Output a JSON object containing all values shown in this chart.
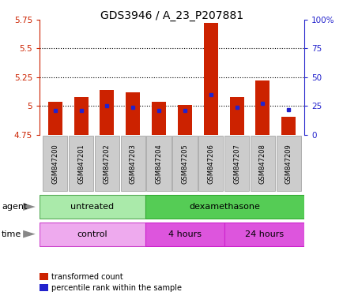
{
  "title": "GDS3946 / A_23_P207881",
  "samples": [
    "GSM847200",
    "GSM847201",
    "GSM847202",
    "GSM847203",
    "GSM847204",
    "GSM847205",
    "GSM847206",
    "GSM847207",
    "GSM847208",
    "GSM847209"
  ],
  "transformed_count": [
    5.04,
    5.08,
    5.14,
    5.12,
    5.04,
    5.01,
    5.72,
    5.08,
    5.22,
    4.91
  ],
  "percentile_rank": [
    21,
    21,
    25,
    24,
    21,
    21,
    35,
    24,
    27,
    22
  ],
  "base_value": 4.75,
  "ylim_left": [
    4.75,
    5.75
  ],
  "ylim_right": [
    0,
    100
  ],
  "yticks_left": [
    4.75,
    5.0,
    5.25,
    5.5,
    5.75
  ],
  "ytick_labels_left": [
    "4.75",
    "5",
    "5.25",
    "5.5",
    "5.75"
  ],
  "yticks_right": [
    0,
    25,
    50,
    75,
    100
  ],
  "ytick_labels_right": [
    "0",
    "25",
    "50",
    "75",
    "100%"
  ],
  "hlines": [
    5.0,
    5.25,
    5.5
  ],
  "bar_color": "#cc2200",
  "dot_color": "#2222cc",
  "agent_untreated_label": "untreated",
  "agent_dexa_label": "dexamethasone",
  "time_control_label": "control",
  "time_4h_label": "4 hours",
  "time_24h_label": "24 hours",
  "agent_row_label": "agent",
  "time_row_label": "time",
  "legend_red_label": "transformed count",
  "legend_blue_label": "percentile rank within the sample",
  "light_green": "#aaeaaa",
  "bright_green": "#55cc55",
  "light_purple": "#eeaaee",
  "bright_purple": "#dd55dd",
  "sample_bg": "#cccccc",
  "left_axis_color": "#cc2200",
  "right_axis_color": "#2222cc"
}
